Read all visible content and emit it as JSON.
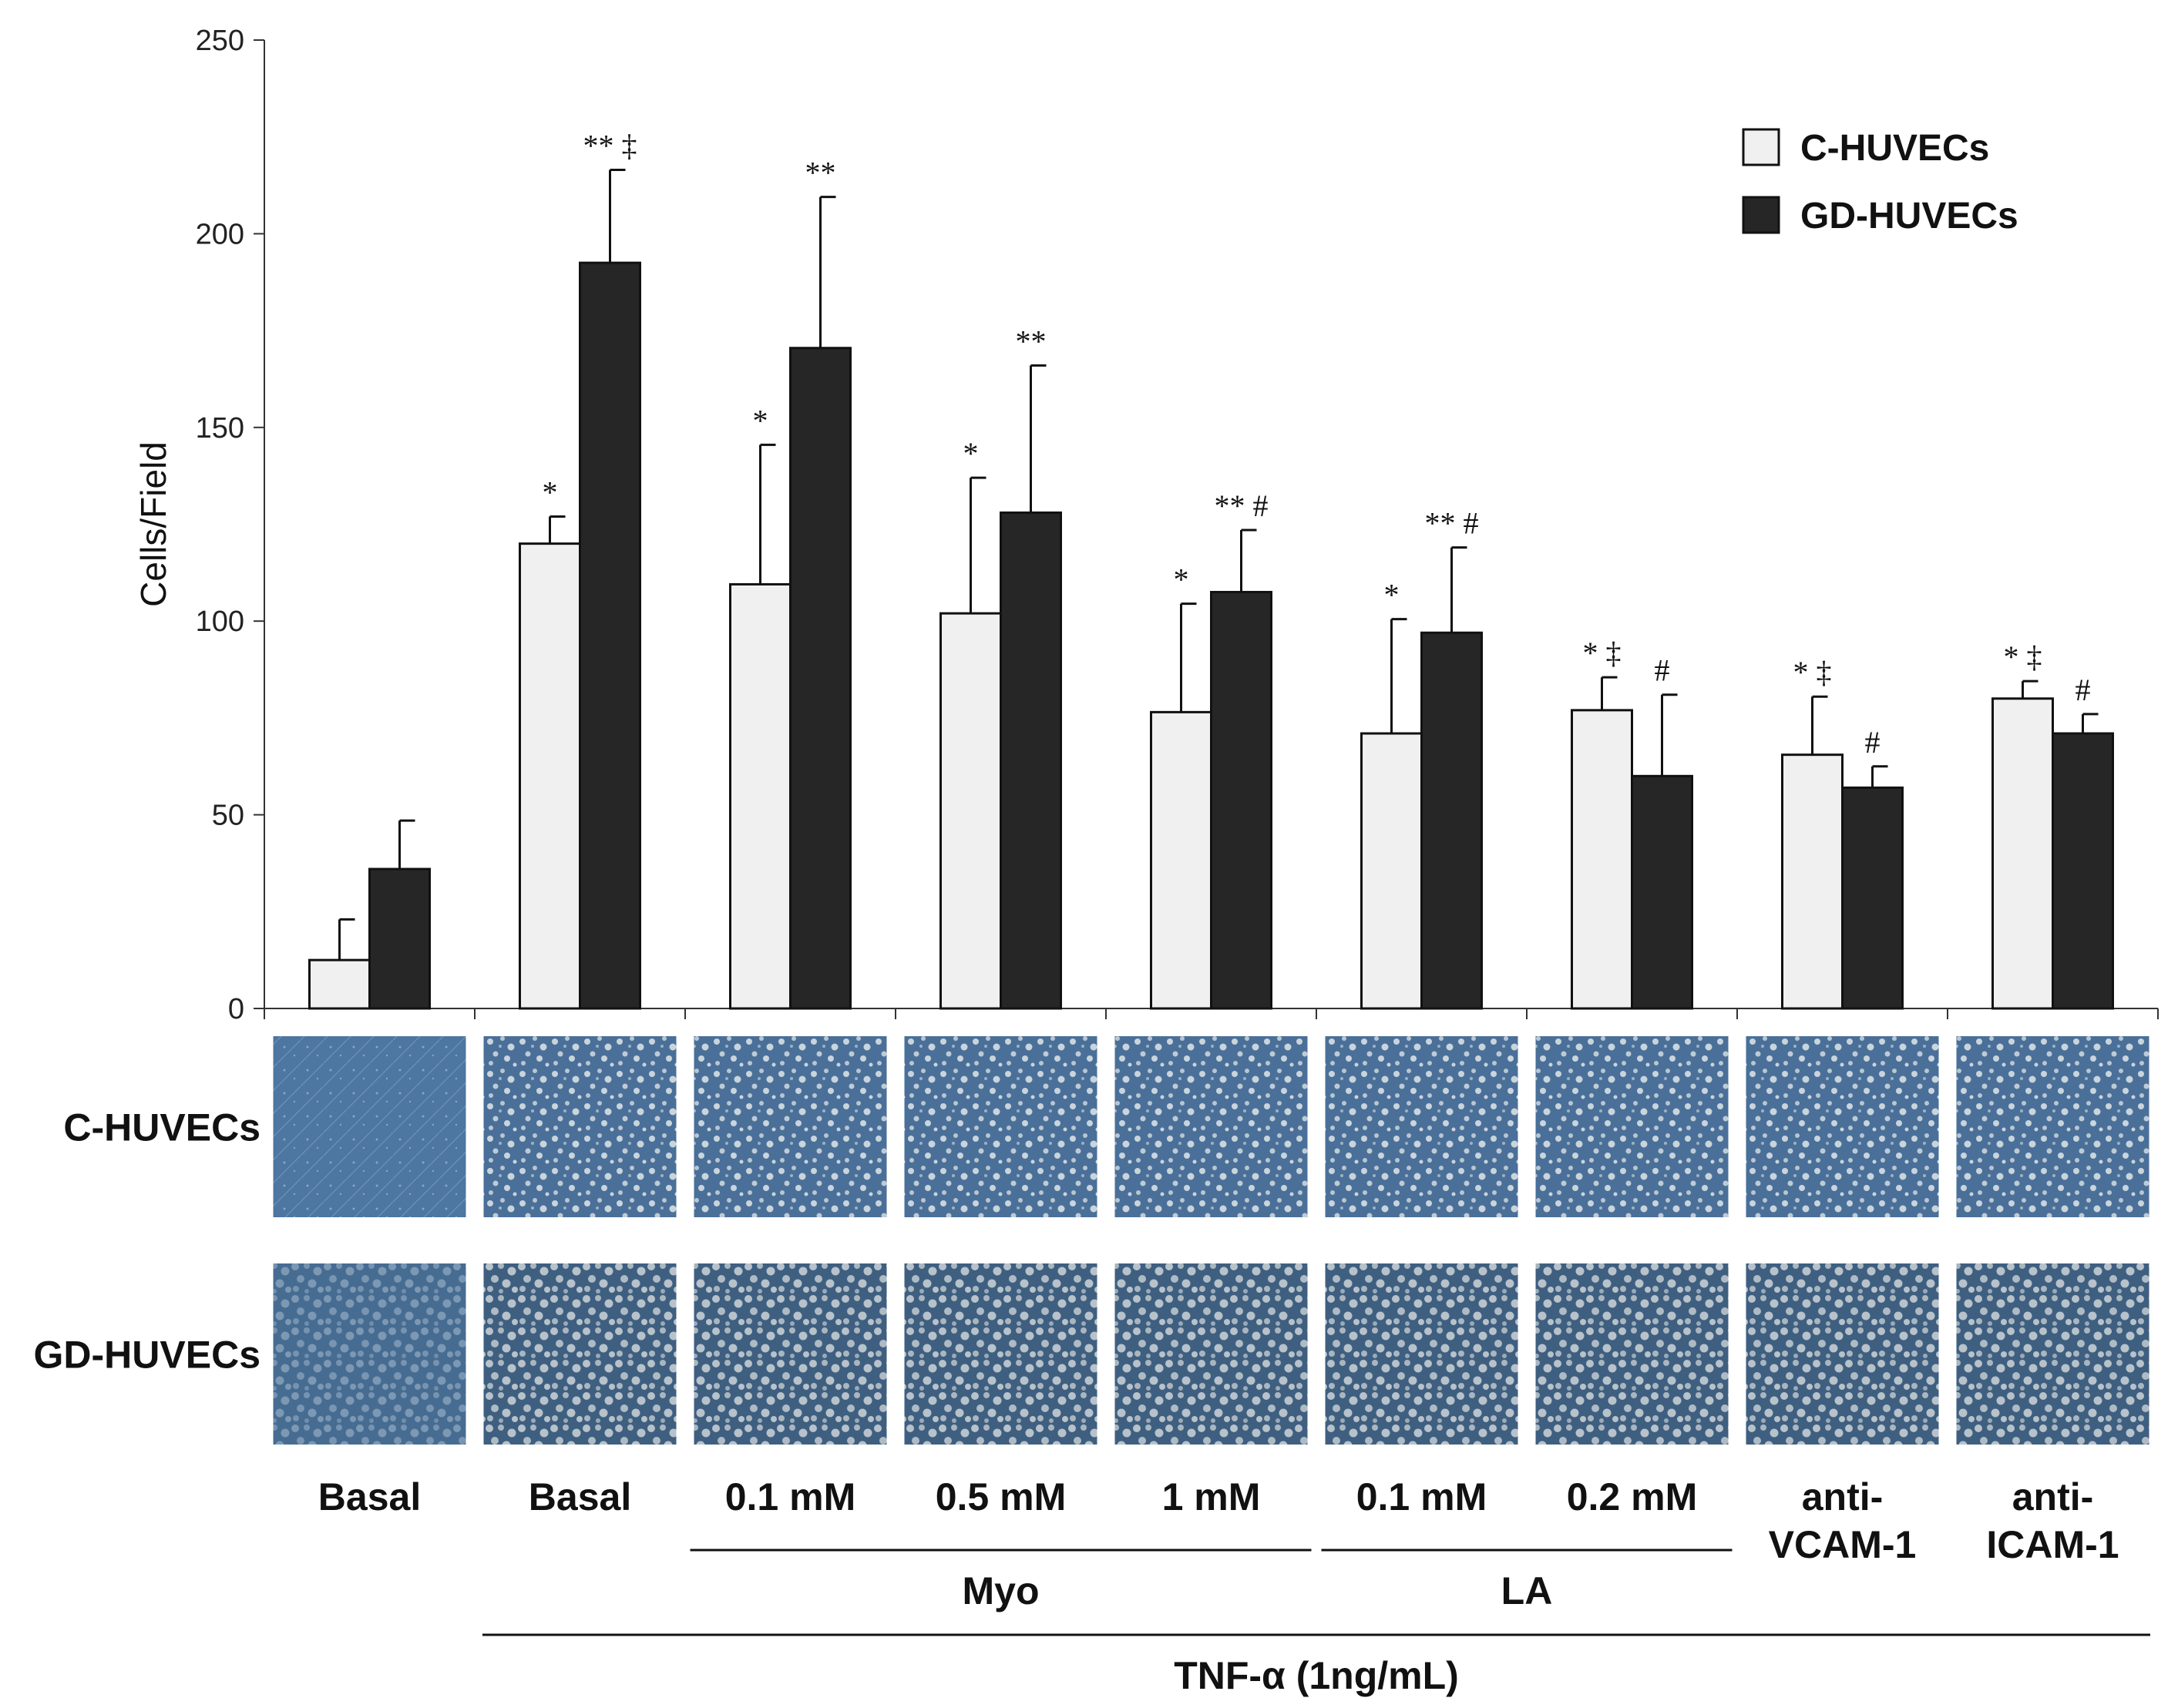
{
  "chart_data": {
    "type": "bar",
    "ylabel": "Cells/Field",
    "ylim": [
      0,
      250
    ],
    "yticks": [
      0,
      50,
      100,
      150,
      200,
      250
    ],
    "categories": [
      "Basal",
      "Basal",
      "0.1 mM",
      "0.5 mM",
      "1 mM",
      "0.1 mM",
      "0.2 mM",
      "anti-\nVCAM-1",
      "anti-\nICAM-1"
    ],
    "series": [
      {
        "name": "C-HUVECs",
        "color": "#f0f0f0",
        "values": [
          12.5,
          120,
          109.5,
          102,
          76.5,
          71,
          77,
          65.5,
          80
        ],
        "errors": [
          10.5,
          7,
          36,
          35,
          28,
          29.5,
          8.5,
          15,
          4.5
        ],
        "annotations": [
          "",
          "*",
          "*",
          "*",
          "*",
          "*",
          "* ‡",
          "* ‡",
          "* ‡"
        ]
      },
      {
        "name": "GD-HUVECs",
        "color": "#262626",
        "values": [
          36,
          192.5,
          170.5,
          128,
          107.5,
          97,
          60,
          57,
          71
        ],
        "errors": [
          12.5,
          24,
          39,
          38,
          16,
          22,
          21,
          5.5,
          5
        ],
        "annotations": [
          "",
          "** ‡",
          "**",
          "**",
          "** #",
          "** #",
          "#",
          "#",
          "#"
        ]
      }
    ],
    "group_labels": [
      {
        "label": "Myo",
        "from_index": 2,
        "to_index": 4
      },
      {
        "label": "LA",
        "from_index": 5,
        "to_index": 6
      },
      {
        "label": "TNF-α (1ng/mL)",
        "from_index": 1,
        "to_index": 8
      }
    ],
    "image_rows": [
      {
        "label": "C-HUVECs",
        "tone": "#4a7099",
        "speckle": "#c9d4dc"
      },
      {
        "label": "GD-HUVECs",
        "tone": "#3f5f80",
        "speckle": "#b7c2cb"
      }
    ],
    "legend_position": "top-right"
  }
}
